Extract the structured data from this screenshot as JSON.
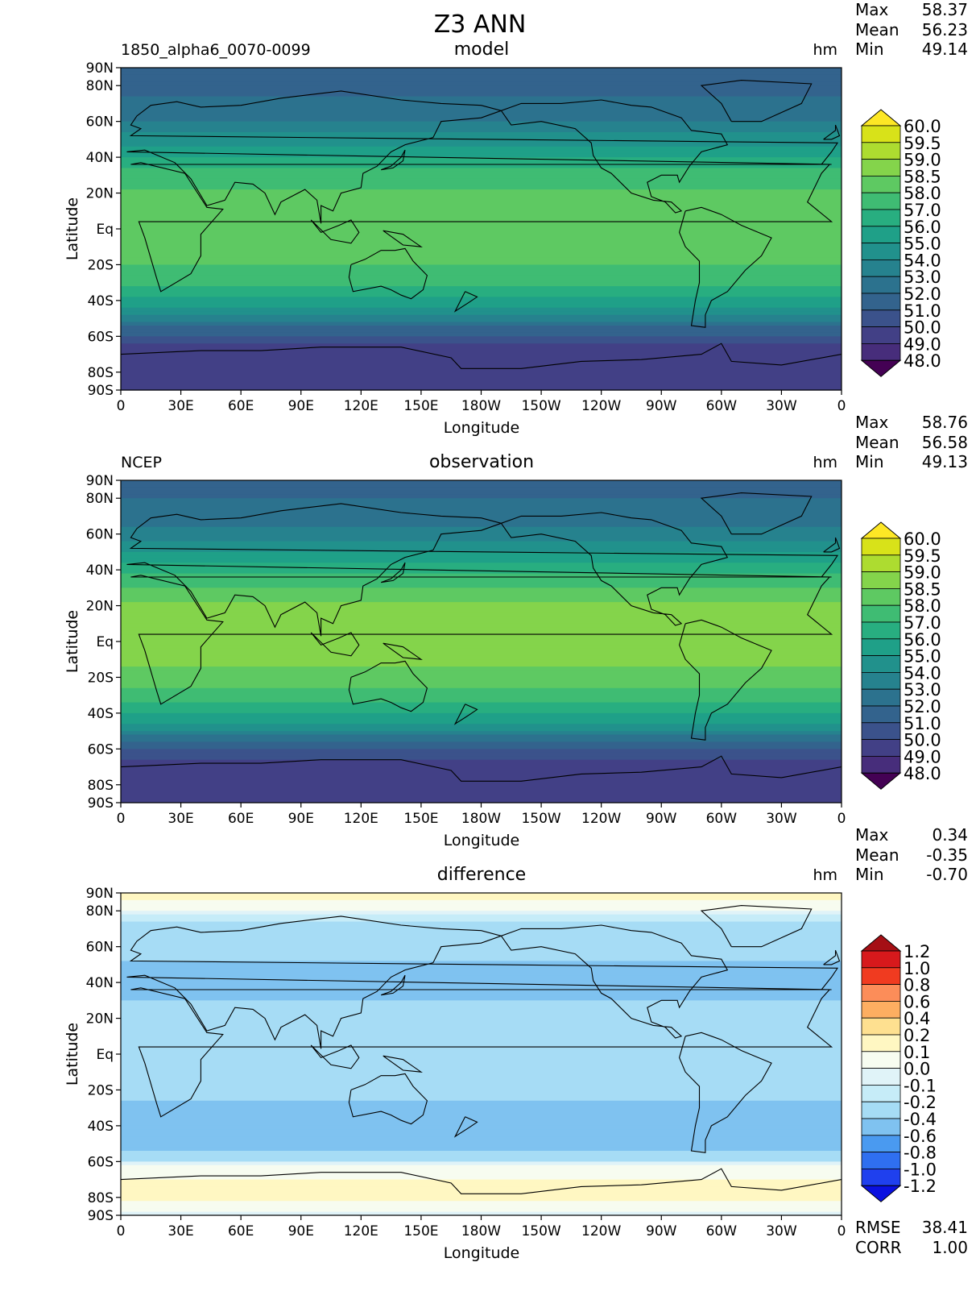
{
  "figure": {
    "title": "Z3 ANN"
  },
  "axes": {
    "ylabel": "Latitude",
    "xlabel": "Longitude",
    "lat_ticks": [
      {
        "label": "90N",
        "lat": 90
      },
      {
        "label": "80N",
        "lat": 80
      },
      {
        "label": "60N",
        "lat": 60
      },
      {
        "label": "40N",
        "lat": 40
      },
      {
        "label": "20N",
        "lat": 20
      },
      {
        "label": "Eq",
        "lat": 0
      },
      {
        "label": "20S",
        "lat": -20
      },
      {
        "label": "40S",
        "lat": -40
      },
      {
        "label": "60S",
        "lat": -60
      },
      {
        "label": "80S",
        "lat": -80
      },
      {
        "label": "90S",
        "lat": -90
      }
    ],
    "lon_ticks": [
      "0",
      "30E",
      "60E",
      "90E",
      "120E",
      "150E",
      "180W",
      "150W",
      "120W",
      "90W",
      "60W",
      "30W",
      "0"
    ]
  },
  "chart_data": [
    {
      "type": "heatmap",
      "left_label": "1850_alpha6_0070-0099",
      "center_label": "model",
      "units": "hm",
      "stats": [
        {
          "label": "Max",
          "value": "58.37"
        },
        {
          "label": "Mean",
          "value": "56.23"
        },
        {
          "label": "Min",
          "value": "49.14"
        }
      ],
      "colorbar": {
        "levels": [
          "60.0",
          "59.5",
          "59.0",
          "58.5",
          "58.0",
          "57.0",
          "56.0",
          "55.0",
          "54.0",
          "53.0",
          "52.0",
          "51.0",
          "50.0",
          "49.0",
          "48.0"
        ],
        "colors": [
          "#fde725",
          "#d8e219",
          "#addc30",
          "#84d44b",
          "#5ec962",
          "#3fbc73",
          "#28ae80",
          "#1fa088",
          "#21918c",
          "#26828e",
          "#2c728e",
          "#33638d",
          "#3b528b",
          "#424086",
          "#472d7b",
          "#440154"
        ]
      },
      "profile": [
        [
          90,
          51.5
        ],
        [
          75,
          51.9
        ],
        [
          60,
          53.0
        ],
        [
          45,
          55.3
        ],
        [
          30,
          57.6
        ],
        [
          20,
          58.1
        ],
        [
          0,
          58.3
        ],
        [
          -20,
          58.0
        ],
        [
          -30,
          57.3
        ],
        [
          -45,
          54.7
        ],
        [
          -55,
          51.9
        ],
        [
          -65,
          49.8
        ],
        [
          -75,
          49.3
        ],
        [
          -90,
          49.2
        ]
      ]
    },
    {
      "type": "heatmap",
      "left_label": "NCEP",
      "center_label": "observation",
      "units": "hm",
      "stats": [
        {
          "label": "Max",
          "value": "58.76"
        },
        {
          "label": "Mean",
          "value": "56.58"
        },
        {
          "label": "Min",
          "value": "49.13"
        }
      ],
      "colorbar": {
        "levels": [
          "60.0",
          "59.5",
          "59.0",
          "58.5",
          "58.0",
          "57.0",
          "56.0",
          "55.0",
          "54.0",
          "53.0",
          "52.0",
          "51.0",
          "50.0",
          "49.0",
          "48.0"
        ],
        "colors": [
          "#fde725",
          "#d8e219",
          "#addc30",
          "#84d44b",
          "#5ec962",
          "#3fbc73",
          "#28ae80",
          "#1fa088",
          "#21918c",
          "#26828e",
          "#2c728e",
          "#33638d",
          "#3b528b",
          "#424086",
          "#472d7b",
          "#440154"
        ]
      },
      "profile": [
        [
          90,
          51.8
        ],
        [
          75,
          52.1
        ],
        [
          60,
          53.4
        ],
        [
          45,
          55.8
        ],
        [
          30,
          58.1
        ],
        [
          20,
          58.6
        ],
        [
          0,
          58.7
        ],
        [
          -20,
          58.4
        ],
        [
          -30,
          57.7
        ],
        [
          -45,
          55.2
        ],
        [
          -55,
          52.3
        ],
        [
          -65,
          50.1
        ],
        [
          -75,
          49.3
        ],
        [
          -90,
          49.2
        ]
      ]
    },
    {
      "type": "heatmap",
      "left_label": "",
      "center_label": "difference",
      "units": "hm",
      "stats": [
        {
          "label": "Max",
          "value": "0.34"
        },
        {
          "label": "Mean",
          "value": "-0.35"
        },
        {
          "label": "Min",
          "value": "-0.70"
        }
      ],
      "bottom_stats": [
        {
          "label": "RMSE",
          "value": "38.41"
        },
        {
          "label": "CORR",
          "value": "1.00"
        }
      ],
      "colorbar": {
        "levels": [
          "1.2",
          "1.0",
          "0.8",
          "0.6",
          "0.4",
          "0.2",
          "0.1",
          "0.0",
          "-0.1",
          "-0.2",
          "-0.4",
          "-0.6",
          "-0.8",
          "-1.0",
          "-1.2"
        ],
        "colors": [
          "#a50f15",
          "#d7191c",
          "#f03b20",
          "#fc8d59",
          "#fdae61",
          "#fee090",
          "#fff7c2",
          "#f7fcf0",
          "#e0f3f8",
          "#c6ecf8",
          "#a6dcf5",
          "#7fc2f0",
          "#4a9af0",
          "#2f6ff0",
          "#1f40ee",
          "#0a10e0"
        ]
      },
      "profile": [
        [
          90,
          0.15
        ],
        [
          82,
          0.05
        ],
        [
          75,
          -0.2
        ],
        [
          60,
          -0.35
        ],
        [
          45,
          -0.45
        ],
        [
          30,
          -0.4
        ],
        [
          15,
          -0.35
        ],
        [
          0,
          -0.3
        ],
        [
          -20,
          -0.35
        ],
        [
          -35,
          -0.5
        ],
        [
          -50,
          -0.55
        ],
        [
          -58,
          -0.3
        ],
        [
          -63,
          0.05
        ],
        [
          -70,
          0.1
        ],
        [
          -78,
          0.2
        ],
        [
          -85,
          0.05
        ],
        [
          -90,
          -0.05
        ]
      ]
    }
  ]
}
